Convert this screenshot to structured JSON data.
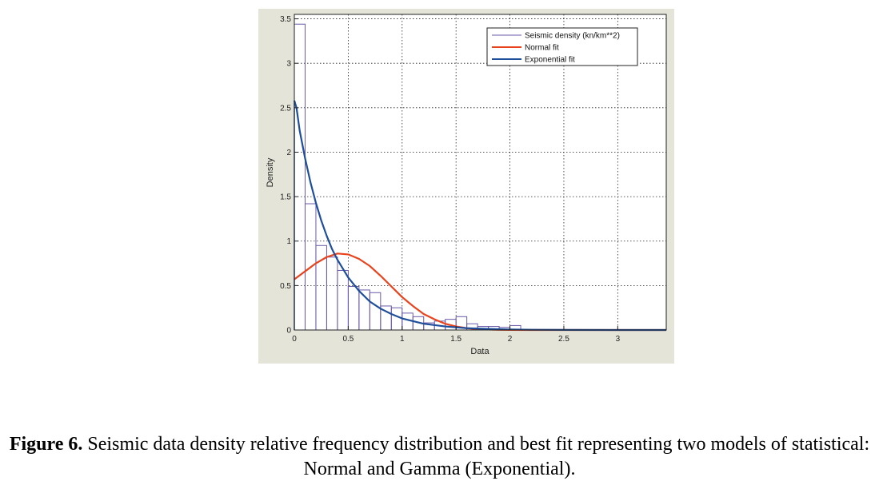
{
  "caption": {
    "label": "Figure 6.",
    "text": " Seismic data density relative frequency distribution and best fit representing two models of statistical: Normal and Gamma (Exponential)."
  },
  "chart_data": {
    "type": "bar",
    "xlabel": "Data",
    "ylabel": "Density",
    "xlim": [
      0,
      3.45
    ],
    "ylim": [
      0,
      3.55
    ],
    "grid": true,
    "legend_position": "top-right",
    "x_ticks": [
      {
        "value": 0,
        "label": "0"
      },
      {
        "value": 0.5,
        "label": "0.5"
      },
      {
        "value": 1,
        "label": "1"
      },
      {
        "value": 1.5,
        "label": "1.5"
      },
      {
        "value": 2,
        "label": "2"
      },
      {
        "value": 2.5,
        "label": "2.5"
      },
      {
        "value": 3,
        "label": "3"
      }
    ],
    "y_ticks": [
      {
        "value": 0,
        "label": "0"
      },
      {
        "value": 0.5,
        "label": "0.5"
      },
      {
        "value": 1,
        "label": "1"
      },
      {
        "value": 1.5,
        "label": "1.5"
      },
      {
        "value": 2,
        "label": "2"
      },
      {
        "value": 2.5,
        "label": "2.5"
      },
      {
        "value": 3,
        "label": "3"
      },
      {
        "value": 3.5,
        "label": "3.5"
      }
    ],
    "histogram": {
      "name": "Seismic density (kn/km**2)",
      "color": "#6a5aa8",
      "bin_width": 0.1,
      "bins": [
        {
          "x0": 0.0,
          "value": 3.44
        },
        {
          "x0": 0.1,
          "value": 1.42
        },
        {
          "x0": 0.2,
          "value": 0.95
        },
        {
          "x0": 0.3,
          "value": 0.82
        },
        {
          "x0": 0.4,
          "value": 0.67
        },
        {
          "x0": 0.5,
          "value": 0.49
        },
        {
          "x0": 0.6,
          "value": 0.45
        },
        {
          "x0": 0.7,
          "value": 0.42
        },
        {
          "x0": 0.8,
          "value": 0.27
        },
        {
          "x0": 0.9,
          "value": 0.25
        },
        {
          "x0": 1.0,
          "value": 0.19
        },
        {
          "x0": 1.1,
          "value": 0.15
        },
        {
          "x0": 1.2,
          "value": 0.08
        },
        {
          "x0": 1.3,
          "value": 0.1
        },
        {
          "x0": 1.4,
          "value": 0.12
        },
        {
          "x0": 1.5,
          "value": 0.15
        },
        {
          "x0": 1.6,
          "value": 0.07
        },
        {
          "x0": 1.7,
          "value": 0.04
        },
        {
          "x0": 1.8,
          "value": 0.04
        },
        {
          "x0": 1.9,
          "value": 0.03
        },
        {
          "x0": 2.0,
          "value": 0.05
        }
      ]
    },
    "series": [
      {
        "name": "Normal fit",
        "color": "#e8431c",
        "x": [
          0,
          0.1,
          0.2,
          0.3,
          0.4,
          0.5,
          0.6,
          0.7,
          0.8,
          0.9,
          1.0,
          1.1,
          1.2,
          1.3,
          1.4,
          1.5,
          1.6,
          1.7,
          1.8,
          1.9,
          2.0,
          2.2,
          2.5,
          3.0,
          3.45
        ],
        "y": [
          0.57,
          0.66,
          0.75,
          0.82,
          0.86,
          0.85,
          0.8,
          0.72,
          0.61,
          0.49,
          0.37,
          0.27,
          0.18,
          0.12,
          0.07,
          0.04,
          0.02,
          0.01,
          0.005,
          0.002,
          0.001,
          0,
          0,
          0,
          0
        ]
      },
      {
        "name": "Exponential fit",
        "color": "#1f4e9b",
        "x": [
          0,
          0.02,
          0.05,
          0.1,
          0.15,
          0.2,
          0.25,
          0.3,
          0.35,
          0.4,
          0.5,
          0.6,
          0.7,
          0.8,
          0.9,
          1.0,
          1.2,
          1.4,
          1.6,
          1.8,
          2.0,
          2.2,
          2.5,
          3.0,
          3.45
        ],
        "y": [
          2.58,
          2.5,
          2.24,
          1.93,
          1.66,
          1.43,
          1.23,
          1.06,
          0.91,
          0.79,
          0.59,
          0.44,
          0.32,
          0.24,
          0.18,
          0.13,
          0.07,
          0.04,
          0.02,
          0.012,
          0.006,
          0.003,
          0.001,
          0,
          0
        ]
      }
    ]
  }
}
